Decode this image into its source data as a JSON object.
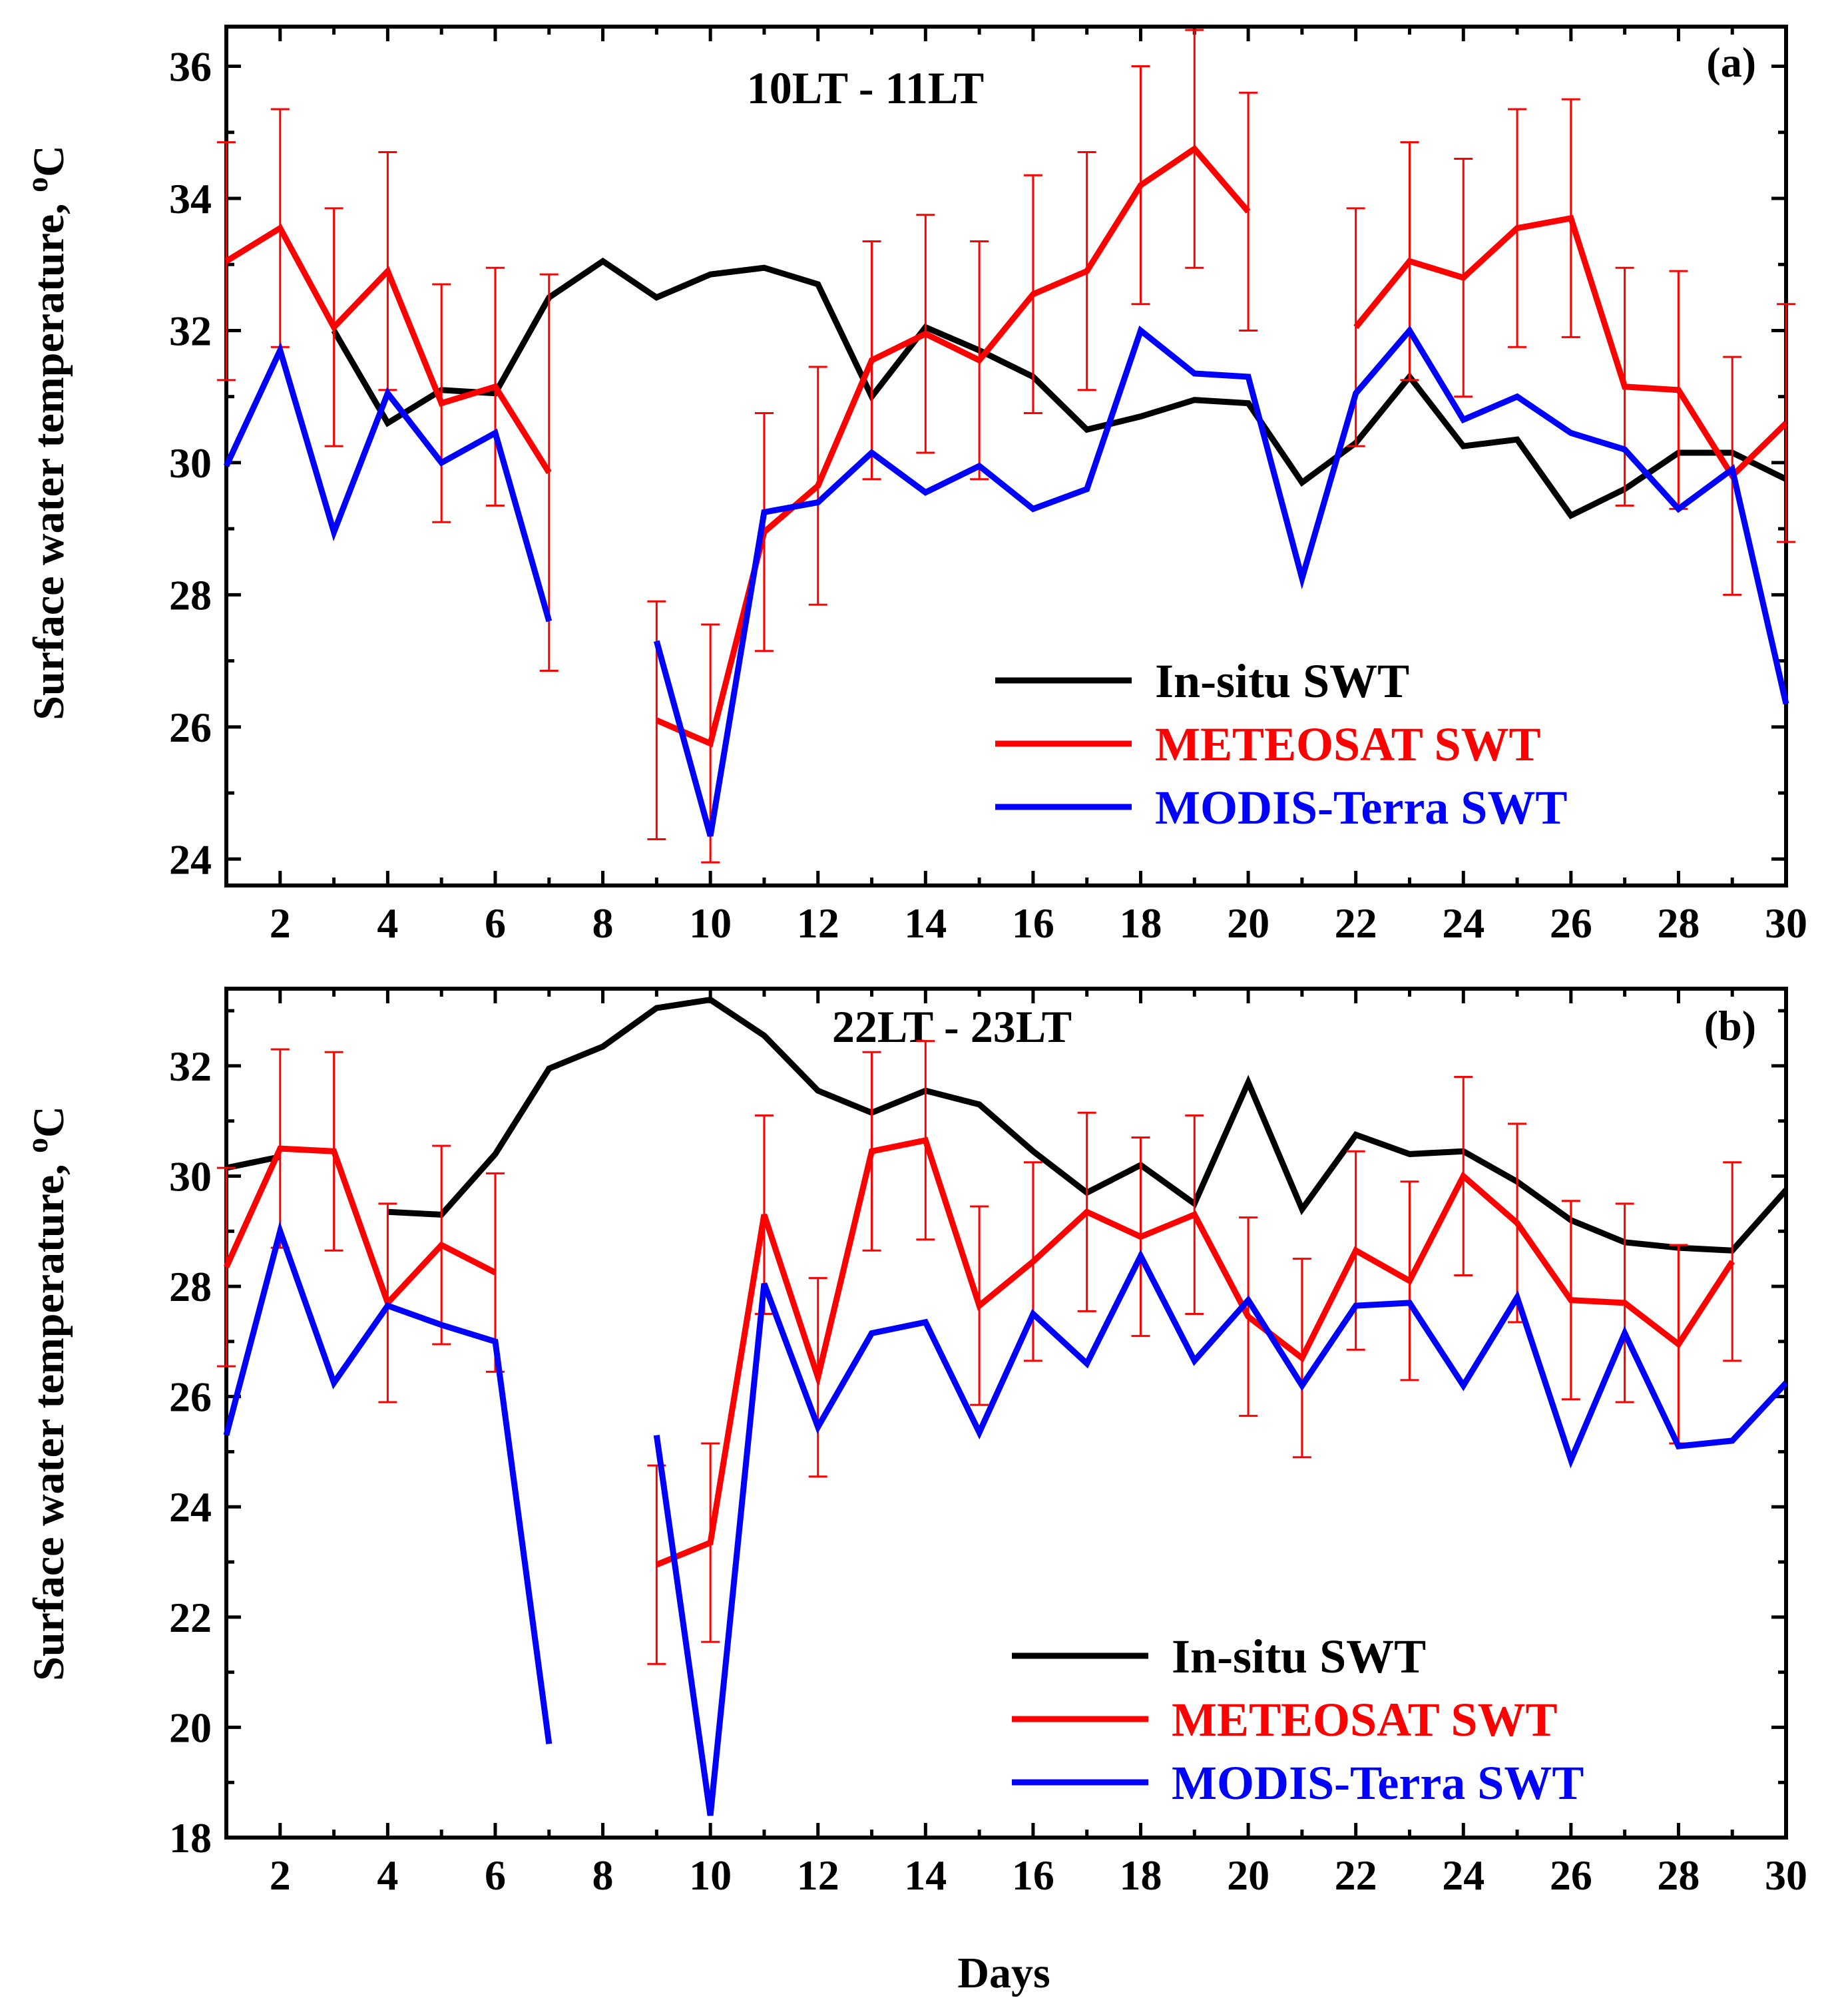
{
  "chart_data": [
    {
      "type": "line",
      "panel_tag": "(a)",
      "title": "10LT - 11LT",
      "xlabel": "",
      "ylabel": "Surface water temperature, oC",
      "ylabel_parts": [
        "Surface water temperature, ",
        "o",
        "C"
      ],
      "xlim": [
        1,
        30
      ],
      "ylim": [
        23.6,
        36.6
      ],
      "xticks": [
        2,
        4,
        6,
        8,
        10,
        12,
        14,
        16,
        18,
        20,
        22,
        24,
        26,
        28,
        30
      ],
      "yticks": [
        24,
        26,
        28,
        30,
        32,
        34,
        36
      ],
      "legend_position": "lower-right",
      "series": [
        {
          "name": "In-situ SWT",
          "color": "#000000",
          "x": [
            1,
            2,
            3,
            4,
            5,
            6,
            7,
            8,
            9,
            10,
            11,
            12,
            13,
            14,
            15,
            16,
            17,
            18,
            19,
            20,
            21,
            22,
            23,
            24,
            25,
            26,
            27,
            28,
            29,
            30
          ],
          "values": [
            null,
            null,
            32.0,
            30.6,
            31.1,
            31.05,
            32.5,
            33.05,
            32.5,
            32.85,
            32.95,
            32.7,
            31.0,
            32.05,
            31.7,
            31.3,
            30.5,
            30.7,
            30.95,
            30.9,
            29.7,
            30.3,
            31.3,
            30.25,
            30.35,
            29.2,
            29.6,
            30.15,
            30.15,
            29.75
          ]
        },
        {
          "name": "METEOSAT SWT",
          "color": "#ff0000",
          "x": [
            1,
            2,
            3,
            4,
            5,
            6,
            7,
            8,
            9,
            10,
            11,
            12,
            13,
            14,
            15,
            16,
            17,
            18,
            19,
            20,
            21,
            22,
            23,
            24,
            25,
            26,
            27,
            28,
            29,
            30
          ],
          "values": [
            33.05,
            33.55,
            32.05,
            32.9,
            30.9,
            31.15,
            29.85,
            null,
            26.1,
            25.75,
            28.95,
            29.65,
            31.55,
            31.95,
            31.55,
            32.55,
            32.9,
            34.2,
            34.75,
            33.8,
            null,
            32.05,
            33.05,
            32.8,
            33.55,
            33.7,
            31.15,
            31.1,
            29.8,
            30.6
          ],
          "errors": [
            1.8,
            1.8,
            1.8,
            1.8,
            1.8,
            1.8,
            3.0,
            null,
            1.8,
            1.8,
            1.8,
            1.8,
            1.8,
            1.8,
            1.8,
            1.8,
            1.8,
            1.8,
            1.8,
            1.8,
            null,
            1.8,
            1.8,
            1.8,
            1.8,
            1.8,
            1.8,
            1.8,
            1.8,
            1.8
          ]
        },
        {
          "name": "MODIS-Terra SWT",
          "color": "#0000ff",
          "x": [
            1,
            2,
            3,
            4,
            5,
            6,
            7,
            8,
            9,
            10,
            11,
            12,
            13,
            14,
            15,
            16,
            17,
            18,
            19,
            20,
            21,
            22,
            23,
            24,
            25,
            26,
            27,
            28,
            29,
            30
          ],
          "values": [
            29.95,
            31.7,
            28.95,
            31.05,
            30.0,
            30.45,
            27.6,
            null,
            27.3,
            24.35,
            29.25,
            29.4,
            30.15,
            29.55,
            29.95,
            29.3,
            29.6,
            32.0,
            31.35,
            31.3,
            28.25,
            31.05,
            32.0,
            30.65,
            31.0,
            30.45,
            30.2,
            29.3,
            29.9,
            26.35
          ]
        }
      ]
    },
    {
      "type": "line",
      "panel_tag": "(b)",
      "title": "22LT - 23LT",
      "xlabel": "Days",
      "ylabel": "Surface water temperature, oC",
      "ylabel_parts": [
        "Surface water temperature, ",
        "o",
        "C"
      ],
      "xlim": [
        1,
        30
      ],
      "ylim": [
        18,
        33.4
      ],
      "xticks": [
        2,
        4,
        6,
        8,
        10,
        12,
        14,
        16,
        18,
        20,
        22,
        24,
        26,
        28,
        30
      ],
      "yticks": [
        18,
        20,
        22,
        24,
        26,
        28,
        30,
        32
      ],
      "legend_position": "lower-right",
      "series": [
        {
          "name": "In-situ SWT",
          "color": "#000000",
          "x": [
            1,
            2,
            3,
            4,
            5,
            6,
            7,
            8,
            9,
            10,
            11,
            12,
            13,
            14,
            15,
            16,
            17,
            18,
            19,
            20,
            21,
            22,
            23,
            24,
            25,
            26,
            27,
            28,
            29,
            30
          ],
          "values": [
            30.15,
            30.35,
            null,
            29.35,
            29.3,
            30.4,
            31.95,
            32.35,
            33.05,
            33.2,
            32.55,
            31.55,
            31.15,
            31.55,
            31.3,
            30.45,
            29.7,
            30.2,
            29.5,
            31.7,
            29.4,
            30.75,
            30.4,
            30.45,
            29.9,
            29.2,
            28.8,
            28.7,
            28.65,
            29.75
          ]
        },
        {
          "name": "METEOSAT SWT",
          "color": "#ff0000",
          "x": [
            1,
            2,
            3,
            4,
            5,
            6,
            7,
            8,
            9,
            10,
            11,
            12,
            13,
            14,
            15,
            16,
            17,
            18,
            19,
            20,
            21,
            22,
            23,
            24,
            25,
            26,
            27,
            28,
            29,
            30
          ],
          "values": [
            28.35,
            30.5,
            30.45,
            27.7,
            28.75,
            28.25,
            null,
            null,
            22.95,
            23.35,
            29.3,
            26.35,
            30.45,
            30.65,
            27.65,
            28.45,
            29.35,
            28.9,
            29.3,
            27.45,
            26.7,
            28.65,
            28.1,
            30.0,
            29.15,
            27.75,
            27.7,
            26.95,
            28.45,
            null
          ],
          "errors": [
            1.8,
            1.8,
            1.8,
            1.8,
            1.8,
            1.8,
            null,
            null,
            1.8,
            1.8,
            1.8,
            1.8,
            1.8,
            1.8,
            1.8,
            1.8,
            1.8,
            1.8,
            1.8,
            1.8,
            1.8,
            1.8,
            1.8,
            1.8,
            1.8,
            1.8,
            1.8,
            1.8,
            1.8,
            null
          ]
        },
        {
          "name": "MODIS-Terra SWT",
          "color": "#0000ff",
          "x": [
            1,
            2,
            3,
            4,
            5,
            6,
            7,
            8,
            9,
            10,
            11,
            12,
            13,
            14,
            15,
            16,
            17,
            18,
            19,
            20,
            21,
            22,
            23,
            24,
            25,
            26,
            27,
            28,
            29,
            30
          ],
          "values": [
            25.3,
            29.0,
            26.25,
            27.65,
            27.3,
            27.0,
            19.7,
            null,
            25.3,
            18.4,
            28.05,
            25.45,
            27.15,
            27.35,
            25.35,
            27.5,
            26.6,
            28.55,
            26.65,
            27.75,
            26.2,
            27.65,
            27.7,
            26.2,
            27.8,
            24.85,
            27.15,
            25.1,
            25.2,
            26.25
          ]
        }
      ]
    }
  ]
}
